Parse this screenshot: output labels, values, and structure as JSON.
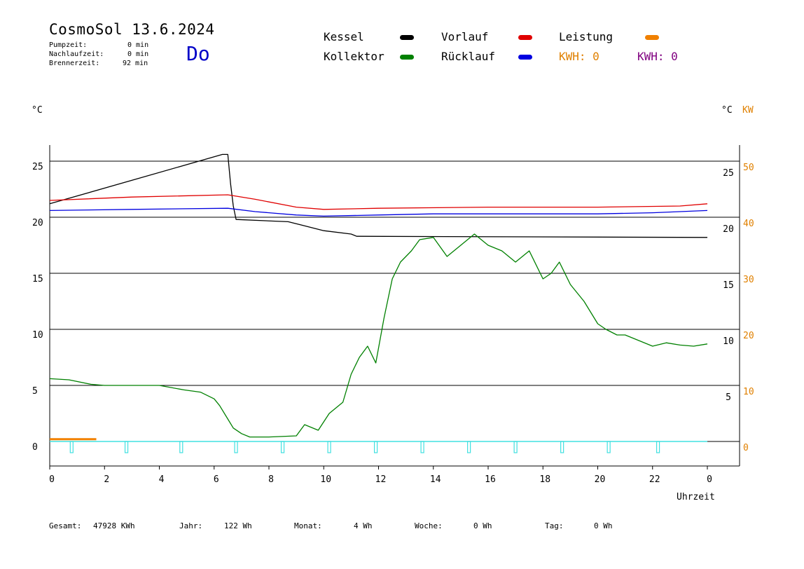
{
  "header": {
    "title": "CosmoSol 13.6.2024",
    "day": "Do",
    "stats": [
      {
        "label": "Pumpzeit:",
        "value": "0 min"
      },
      {
        "label": "Nachlaufzeit:",
        "value": "0 min"
      },
      {
        "label": "Brennerzeit:",
        "value": "92 min"
      }
    ]
  },
  "legend": {
    "kessel": "Kessel",
    "kollektor": "Kollektor",
    "vorlauf": "Vorlauf",
    "ruecklauf": "Rücklauf",
    "leistung": "Leistung",
    "kwh_orange": "KWH: 0",
    "kwh_purple": "KWH: 0"
  },
  "colors": {
    "kessel": "#000000",
    "kollektor": "#008000",
    "vorlauf": "#e00000",
    "ruecklauf": "#0000e0",
    "leistung": "#f08000",
    "kwh_purple": "#800080",
    "pump": "#40e0e0",
    "day": "#0000c8"
  },
  "axes": {
    "left_unit": "°C",
    "right_unit_c": "°C",
    "right_unit_kw": "KW",
    "xlabel": "Uhrzeit"
  },
  "footer": [
    {
      "label": "Gesamt:",
      "value": "47928 KWh"
    },
    {
      "label": "Jahr:",
      "value": "122 Wh"
    },
    {
      "label": "Monat:",
      "value": "4 Wh"
    },
    {
      "label": "Woche:",
      "value": "0 Wh"
    },
    {
      "label": "Tag:",
      "value": "0 Wh"
    }
  ],
  "chart_data": {
    "type": "line",
    "xlim": [
      0,
      24
    ],
    "ylim": [
      -3,
      27
    ],
    "grid": true,
    "x_ticks": [
      "0",
      "2",
      "4",
      "6",
      "8",
      "10",
      "12",
      "14",
      "16",
      "18",
      "20",
      "22",
      "0"
    ],
    "y_ticks_left": [
      "0",
      "5",
      "10",
      "15",
      "20",
      "25"
    ],
    "y_ticks_right_c": [
      "5",
      "10",
      "15",
      "20",
      "25"
    ],
    "y_ticks_right_kw": [
      "0",
      "10",
      "20",
      "30",
      "40",
      "50"
    ],
    "series": [
      {
        "name": "Kessel",
        "color": "#000000",
        "x": [
          0,
          6.3,
          6.5,
          6.6,
          6.7,
          6.8,
          8.7,
          9.2,
          10.0,
          11.0,
          11.2,
          24
        ],
        "y": [
          21.2,
          25.6,
          25.6,
          23,
          21,
          19.8,
          19.6,
          19.3,
          18.8,
          18.5,
          18.3,
          18.2
        ]
      },
      {
        "name": "Vorlauf",
        "color": "#e00000",
        "x": [
          0,
          3,
          6.5,
          7.5,
          9,
          10,
          12,
          16,
          20,
          23,
          24
        ],
        "y": [
          21.5,
          21.8,
          22.0,
          21.6,
          20.9,
          20.7,
          20.8,
          20.9,
          20.9,
          21.0,
          21.2
        ]
      },
      {
        "name": "Rücklauf",
        "color": "#0000e0",
        "x": [
          0,
          3,
          6.5,
          7.5,
          9,
          10,
          12,
          14,
          16,
          18,
          20,
          22,
          24
        ],
        "y": [
          20.6,
          20.7,
          20.8,
          20.5,
          20.2,
          20.1,
          20.2,
          20.3,
          20.3,
          20.3,
          20.3,
          20.4,
          20.6
        ]
      },
      {
        "name": "Kollektor",
        "color": "#008000",
        "x": [
          0,
          0.7,
          1.5,
          2,
          3,
          4,
          4.9,
          5.5,
          6,
          6.2,
          6.5,
          6.7,
          7,
          7.3,
          8,
          9,
          9.3,
          9.8,
          10.2,
          10.7,
          11,
          11.3,
          11.6,
          11.9,
          12.2,
          12.5,
          12.8,
          13.2,
          13.5,
          14,
          14.5,
          15,
          15.5,
          16,
          16.5,
          17,
          17.5,
          18,
          18.3,
          18.6,
          19,
          19.5,
          20,
          20.3,
          20.7,
          21,
          21.5,
          22,
          22.5,
          23,
          23.5,
          24
        ],
        "y": [
          5.6,
          5.5,
          5.1,
          5.0,
          5.0,
          5.0,
          4.6,
          4.4,
          3.8,
          3.2,
          2.0,
          1.2,
          0.7,
          0.4,
          0.4,
          0.5,
          1.5,
          1.0,
          2.5,
          3.5,
          6.0,
          7.5,
          8.5,
          7.0,
          11.0,
          14.5,
          16.0,
          17.0,
          18.0,
          18.2,
          16.5,
          17.5,
          18.5,
          17.5,
          17.0,
          16.0,
          17.0,
          14.5,
          15.0,
          16.0,
          14.0,
          12.5,
          10.5,
          10.0,
          9.5,
          9.5,
          9.0,
          8.5,
          8.8,
          8.6,
          8.5,
          8.7
        ]
      },
      {
        "name": "Leistung",
        "color": "#f08000",
        "x": [
          0,
          1.7
        ],
        "y": [
          0.2,
          0.2
        ]
      }
    ],
    "pump_markers_x": [
      0.8,
      2.8,
      4.8,
      6.8,
      8.5,
      10.2,
      11.9,
      13.6,
      15.3,
      17.0,
      18.7,
      20.4,
      22.2
    ]
  }
}
